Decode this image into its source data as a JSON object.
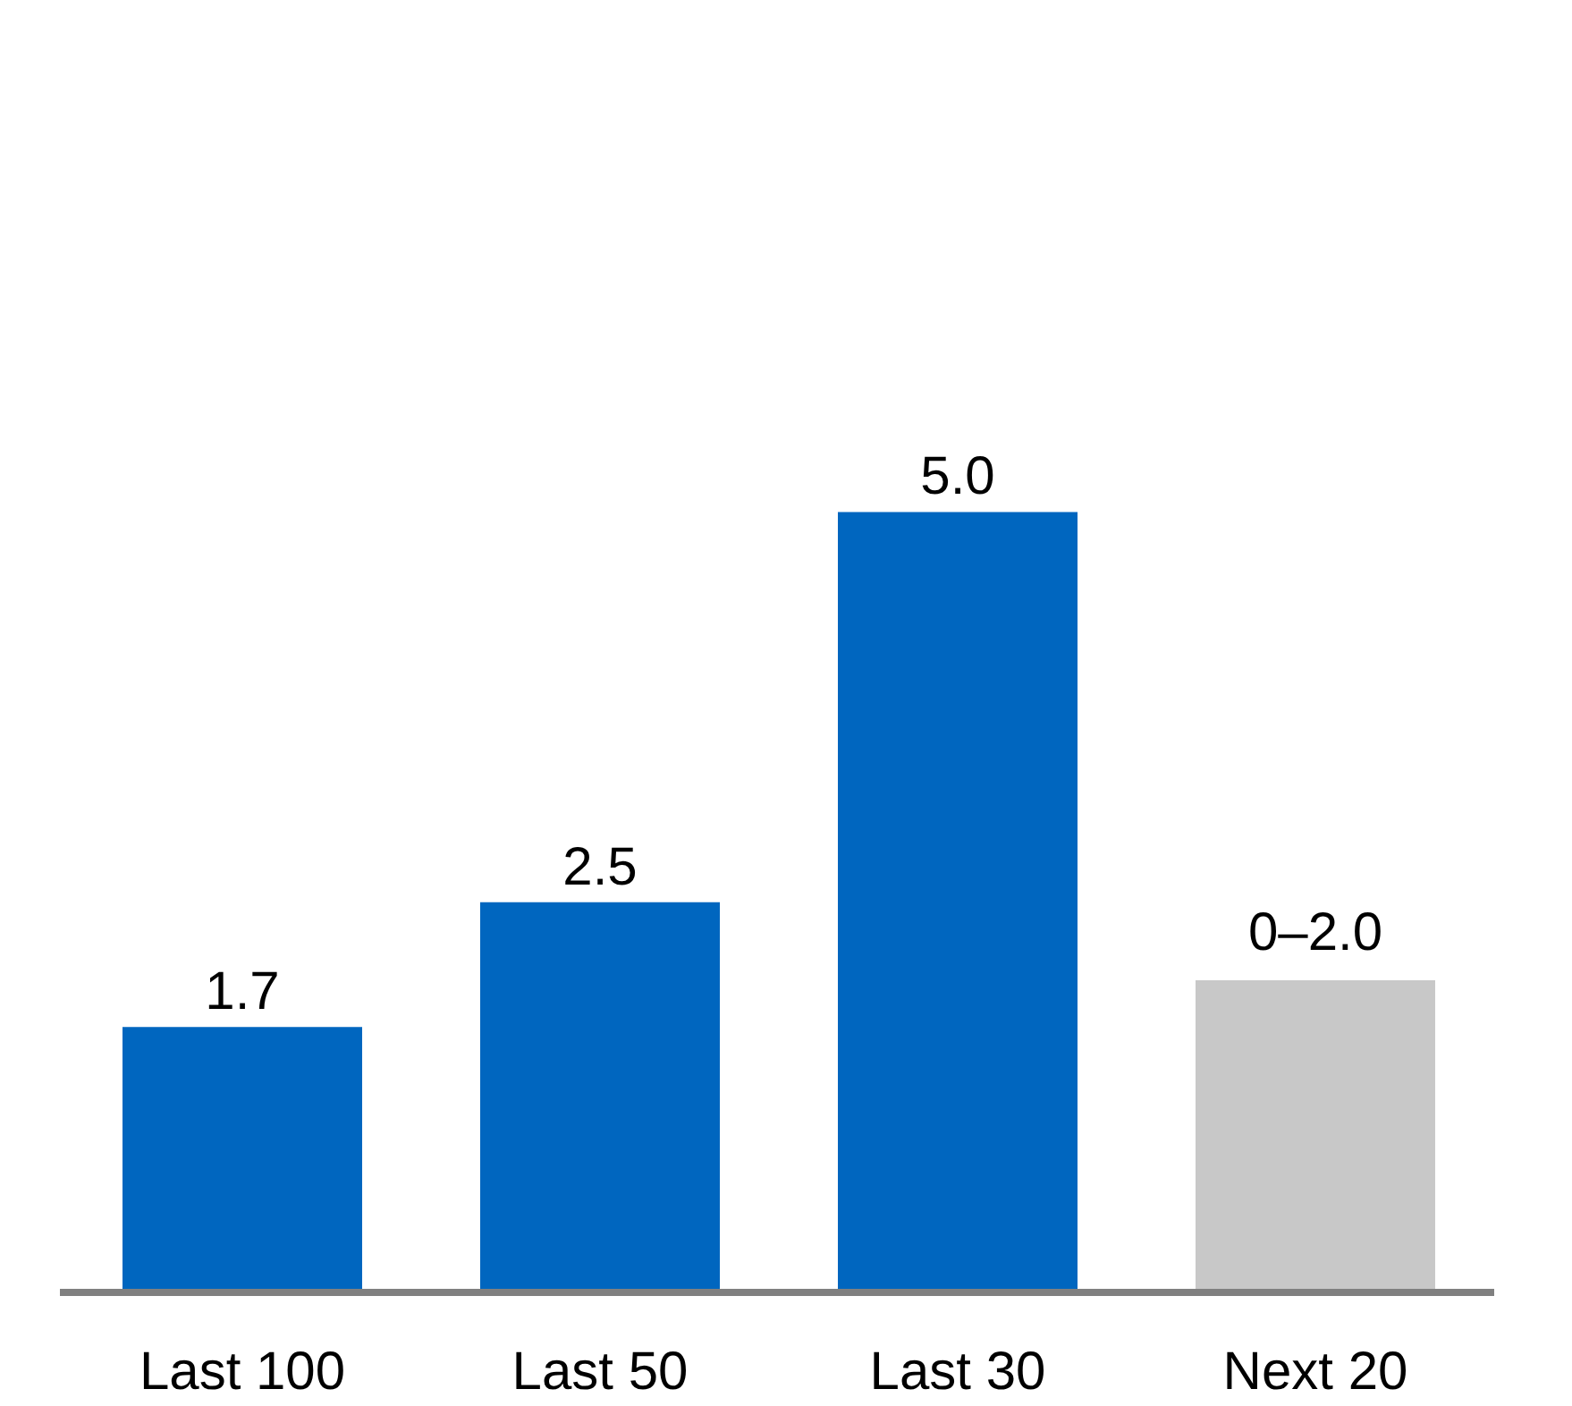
{
  "chart_data": {
    "type": "bar",
    "categories": [
      "Last 100",
      "Last 50",
      "Last 30",
      "Next 20"
    ],
    "values": [
      1.7,
      2.5,
      5.0,
      2.0
    ],
    "colors": [
      "#0066bf",
      "#0066bf",
      "#0066bf",
      "#c8c8c8"
    ],
    "value_labels": [
      "1.7",
      "2.5",
      "5.0",
      "0–2.0"
    ],
    "grid": false,
    "tick_labels": "x"
  }
}
